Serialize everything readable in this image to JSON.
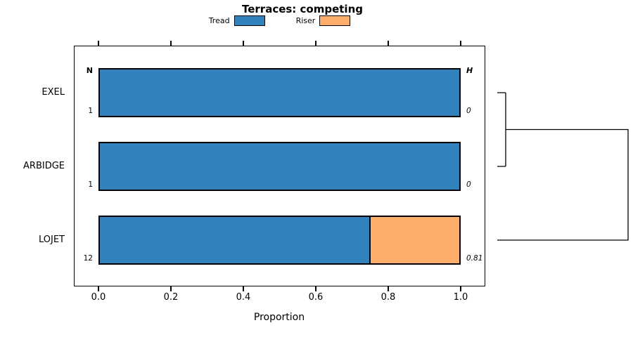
{
  "title": "Terraces: competing",
  "columns": {
    "n_header": "N",
    "h_header": "H"
  },
  "xaxis": {
    "label": "Proportion"
  },
  "chart_data": {
    "type": "bar",
    "orientation": "horizontal",
    "stacked": true,
    "title": "Terraces: competing",
    "xlabel": "Proportion",
    "xlim": [
      0,
      1
    ],
    "xticks": [
      "0.0",
      "0.2",
      "0.4",
      "0.6",
      "0.8",
      "1.0"
    ],
    "categories": [
      "EXEL",
      "ARBIDGE",
      "LOJET"
    ],
    "series": [
      {
        "name": "Tread",
        "color": "#3182bd",
        "values": [
          1.0,
          1.0,
          0.75
        ]
      },
      {
        "name": "Riser",
        "color": "#fdae6b",
        "values": [
          0.0,
          0.0,
          0.25
        ]
      }
    ],
    "n_values": [
      "1",
      "1",
      "12"
    ],
    "h_values": [
      "0",
      "0",
      "0.81"
    ],
    "legend_position": "top",
    "grid": false,
    "dendrogram": {
      "side": "right",
      "merges": [
        {
          "members": [
            "EXEL",
            "ARBIDGE"
          ]
        },
        {
          "members": [
            "EXEL",
            "ARBIDGE",
            "LOJET"
          ]
        }
      ]
    }
  }
}
